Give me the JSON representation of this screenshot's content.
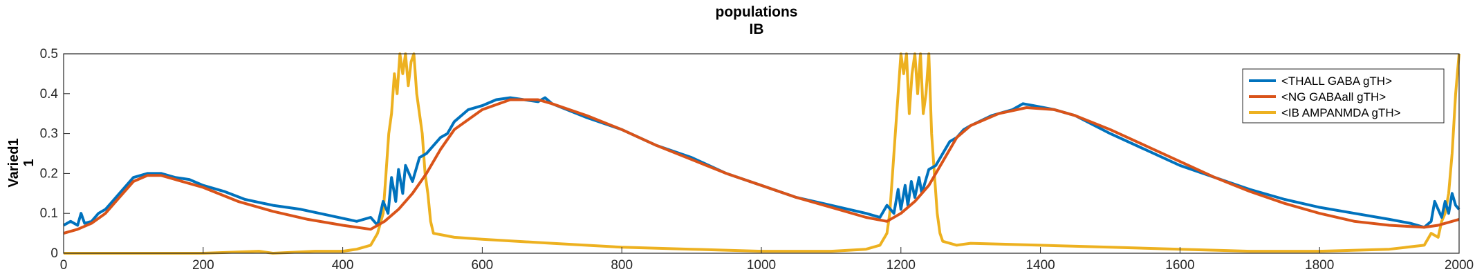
{
  "chart_data": {
    "type": "line",
    "title": "populations",
    "subtitle": "IB",
    "ylabel_line1": "Varied1",
    "ylabel_line2": "1",
    "xlim": [
      0,
      2000
    ],
    "ylim": [
      0,
      0.5
    ],
    "xticks": [
      0,
      200,
      400,
      600,
      800,
      1000,
      1200,
      1400,
      1600,
      1800,
      2000
    ],
    "yticks": [
      0,
      0.1,
      0.2,
      0.3,
      0.4,
      0.5
    ],
    "ytick_labels": [
      "0",
      "0.1",
      "0.2",
      "0.3",
      "0.4",
      "0.5"
    ],
    "legend_position": "top-right",
    "series": [
      {
        "name": "<THALL GABA gTH>",
        "color": "#0072BD",
        "x": [
          0,
          10,
          20,
          25,
          30,
          40,
          50,
          60,
          70,
          80,
          100,
          120,
          140,
          160,
          180,
          200,
          230,
          260,
          300,
          340,
          380,
          420,
          440,
          450,
          458,
          465,
          470,
          476,
          480,
          486,
          490,
          500,
          510,
          520,
          530,
          540,
          550,
          560,
          580,
          600,
          620,
          640,
          660,
          680,
          690,
          700,
          750,
          800,
          850,
          900,
          950,
          1000,
          1050,
          1100,
          1150,
          1170,
          1180,
          1190,
          1196,
          1200,
          1206,
          1210,
          1215,
          1220,
          1226,
          1230,
          1240,
          1250,
          1260,
          1270,
          1280,
          1290,
          1300,
          1330,
          1360,
          1375,
          1390,
          1420,
          1450,
          1500,
          1550,
          1600,
          1650,
          1700,
          1750,
          1800,
          1850,
          1900,
          1930,
          1950,
          1960,
          1965,
          1975,
          1980,
          1985,
          1990,
          1995,
          2000
        ],
        "y": [
          0.07,
          0.08,
          0.07,
          0.1,
          0.075,
          0.08,
          0.1,
          0.11,
          0.13,
          0.15,
          0.19,
          0.2,
          0.2,
          0.19,
          0.185,
          0.17,
          0.155,
          0.135,
          0.12,
          0.11,
          0.095,
          0.08,
          0.09,
          0.07,
          0.13,
          0.1,
          0.19,
          0.13,
          0.21,
          0.15,
          0.22,
          0.18,
          0.24,
          0.25,
          0.27,
          0.29,
          0.3,
          0.33,
          0.36,
          0.37,
          0.385,
          0.39,
          0.385,
          0.38,
          0.39,
          0.375,
          0.34,
          0.31,
          0.27,
          0.24,
          0.2,
          0.17,
          0.14,
          0.12,
          0.1,
          0.09,
          0.12,
          0.1,
          0.16,
          0.11,
          0.17,
          0.12,
          0.18,
          0.14,
          0.19,
          0.15,
          0.21,
          0.22,
          0.25,
          0.28,
          0.29,
          0.31,
          0.32,
          0.345,
          0.36,
          0.375,
          0.37,
          0.36,
          0.345,
          0.3,
          0.26,
          0.22,
          0.19,
          0.16,
          0.135,
          0.115,
          0.1,
          0.085,
          0.075,
          0.065,
          0.08,
          0.13,
          0.09,
          0.13,
          0.1,
          0.15,
          0.12,
          0.11
        ]
      },
      {
        "name": "<NG GABAall gTH>",
        "color": "#D95319",
        "x": [
          0,
          20,
          40,
          60,
          80,
          100,
          120,
          140,
          160,
          200,
          250,
          300,
          350,
          400,
          440,
          460,
          480,
          500,
          520,
          540,
          560,
          600,
          640,
          680,
          700,
          750,
          800,
          850,
          900,
          950,
          1000,
          1050,
          1100,
          1150,
          1180,
          1200,
          1220,
          1240,
          1260,
          1280,
          1300,
          1340,
          1380,
          1420,
          1450,
          1500,
          1550,
          1600,
          1650,
          1700,
          1750,
          1800,
          1850,
          1900,
          1950,
          1970,
          1990,
          2000
        ],
        "y": [
          0.05,
          0.06,
          0.075,
          0.1,
          0.14,
          0.18,
          0.195,
          0.195,
          0.185,
          0.165,
          0.13,
          0.105,
          0.085,
          0.07,
          0.06,
          0.08,
          0.11,
          0.15,
          0.2,
          0.26,
          0.31,
          0.36,
          0.385,
          0.385,
          0.375,
          0.345,
          0.31,
          0.27,
          0.235,
          0.2,
          0.17,
          0.14,
          0.115,
          0.09,
          0.08,
          0.1,
          0.13,
          0.17,
          0.23,
          0.29,
          0.32,
          0.35,
          0.365,
          0.36,
          0.345,
          0.31,
          0.27,
          0.23,
          0.19,
          0.155,
          0.125,
          0.1,
          0.08,
          0.07,
          0.065,
          0.07,
          0.08,
          0.085
        ]
      },
      {
        "name": "<IB AMPANMDA gTH>",
        "color": "#EDB120",
        "x": [
          0,
          100,
          200,
          280,
          300,
          360,
          400,
          420,
          440,
          450,
          458,
          462,
          466,
          470,
          474,
          478,
          482,
          486,
          490,
          494,
          498,
          502,
          506,
          510,
          514,
          518,
          522,
          526,
          530,
          560,
          600,
          700,
          800,
          900,
          1000,
          1100,
          1150,
          1170,
          1180,
          1184,
          1188,
          1192,
          1196,
          1200,
          1204,
          1208,
          1212,
          1216,
          1220,
          1224,
          1228,
          1232,
          1236,
          1240,
          1244,
          1248,
          1252,
          1256,
          1260,
          1280,
          1300,
          1400,
          1500,
          1600,
          1700,
          1800,
          1900,
          1950,
          1960,
          1970,
          1975,
          1980,
          1985,
          1990,
          1995,
          2000
        ],
        "y": [
          0,
          0,
          0,
          0.005,
          0,
          0.005,
          0.005,
          0.01,
          0.02,
          0.05,
          0.1,
          0.2,
          0.3,
          0.35,
          0.45,
          0.4,
          0.5,
          0.45,
          0.5,
          0.42,
          0.48,
          0.5,
          0.4,
          0.35,
          0.3,
          0.2,
          0.15,
          0.08,
          0.05,
          0.04,
          0.035,
          0.025,
          0.015,
          0.01,
          0.005,
          0.005,
          0.01,
          0.02,
          0.05,
          0.1,
          0.2,
          0.3,
          0.4,
          0.5,
          0.45,
          0.5,
          0.35,
          0.45,
          0.5,
          0.4,
          0.5,
          0.35,
          0.4,
          0.5,
          0.3,
          0.2,
          0.1,
          0.05,
          0.03,
          0.02,
          0.025,
          0.02,
          0.015,
          0.01,
          0.005,
          0.005,
          0.01,
          0.02,
          0.05,
          0.04,
          0.08,
          0.1,
          0.15,
          0.25,
          0.4,
          0.5
        ]
      }
    ]
  }
}
